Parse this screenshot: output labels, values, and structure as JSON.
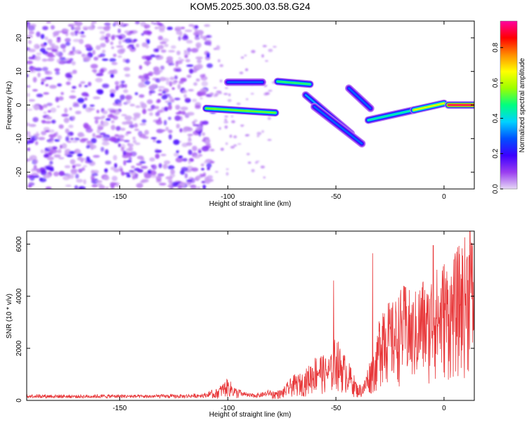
{
  "title": "KOM5.2025.300.03.58.G24",
  "chart_data": [
    {
      "type": "heatmap",
      "name": "spectrogram",
      "xlabel": "Height of straight line (km)",
      "ylabel": "Frequency (Hz)",
      "xlim": [
        -193,
        14
      ],
      "ylim": [
        -25,
        25
      ],
      "xticks": [
        -150,
        -100,
        -50,
        0
      ],
      "yticks": [
        -20,
        -10,
        0,
        10,
        20
      ],
      "colorbar": {
        "label": "Normalized spectral amplitude",
        "range": [
          0.0,
          0.95
        ],
        "ticks": [
          0.0,
          0.2,
          0.4,
          0.6,
          0.8
        ],
        "colormap": [
          "#e6d8f5",
          "#9a3df0",
          "#3c00ff",
          "#0050ff",
          "#00d2ff",
          "#00ff80",
          "#9cff00",
          "#ffff00",
          "#ff8c00",
          "#ff0000",
          "#ff00a0"
        ]
      },
      "noise_region": {
        "x_range": [
          -193,
          -108
        ],
        "f_range": [
          -25,
          25
        ],
        "amplitude_range": [
          0.03,
          0.2
        ]
      },
      "features": [
        {
          "x": [
            -110,
            -78
          ],
          "f": [
            -1.0,
            -2.3
          ],
          "amplitude": 0.55
        },
        {
          "x": [
            -100,
            -84
          ],
          "f": [
            6.8,
            6.8
          ],
          "amplitude": 0.3
        },
        {
          "x": [
            -77,
            -62
          ],
          "f": [
            7.0,
            6.2
          ],
          "amplitude": 0.5
        },
        {
          "x": [
            -64,
            -43
          ],
          "f": [
            3.0,
            -8.5
          ],
          "amplitude": 0.35
        },
        {
          "x": [
            -60,
            -38
          ],
          "f": [
            -0.5,
            -11.5
          ],
          "amplitude": 0.3
        },
        {
          "x": [
            -44,
            -34
          ],
          "f": [
            5.0,
            -1.0
          ],
          "amplitude": 0.3
        },
        {
          "x": [
            -35,
            -14
          ],
          "f": [
            -4.5,
            -1.5
          ],
          "amplitude": 0.45
        },
        {
          "x": [
            -14,
            0
          ],
          "f": [
            -1.5,
            0.5
          ],
          "amplitude": 0.65
        },
        {
          "x": [
            2,
            14
          ],
          "f": [
            0.0,
            0.0
          ],
          "amplitude": 0.92
        }
      ]
    },
    {
      "type": "line",
      "name": "snr",
      "xlabel": "Height of straight line (km)",
      "ylabel": "SNR (10 * v/v)",
      "xlim": [
        -193,
        14
      ],
      "ylim": [
        0,
        6500
      ],
      "xticks": [
        -150,
        -100,
        -50,
        0
      ],
      "yticks": [
        0,
        2000,
        4000,
        6000
      ],
      "color": "#e8383a",
      "series": [
        {
          "name": "SNR",
          "x": [
            -193,
            -180,
            -170,
            -160,
            -150,
            -140,
            -130,
            -120,
            -110,
            -105,
            -100,
            -95,
            -90,
            -85,
            -80,
            -75,
            -70,
            -65,
            -62,
            -58,
            -55,
            -52,
            -50,
            -48,
            -45,
            -42,
            -40,
            -37,
            -35,
            -33,
            -31,
            -30,
            -28,
            -25,
            -22,
            -20,
            -17,
            -15,
            -12,
            -10,
            -7,
            -5,
            -2,
            0,
            3,
            6,
            9,
            12,
            14
          ],
          "values": [
            170,
            160,
            150,
            160,
            160,
            150,
            160,
            160,
            200,
            380,
            720,
            300,
            180,
            200,
            300,
            350,
            800,
            900,
            1200,
            1600,
            1400,
            1500,
            2200,
            1700,
            1400,
            900,
            500,
            600,
            1200,
            1500,
            1900,
            2800,
            3600,
            3100,
            3300,
            3600,
            3800,
            3300,
            3700,
            4000,
            3600,
            4500,
            4100,
            4600,
            4300,
            4900,
            5200,
            5600,
            5100
          ],
          "spikes": [
            {
              "x": -33,
              "y": 5650
            },
            {
              "x": -51,
              "y": 4600
            },
            {
              "x": -5,
              "y": 5950
            },
            {
              "x": 12,
              "y": 6500
            }
          ]
        }
      ]
    }
  ]
}
